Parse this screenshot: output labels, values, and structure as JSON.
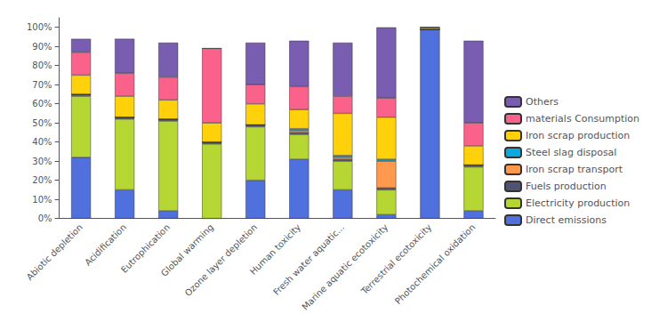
{
  "chart_data": {
    "type": "bar",
    "stacked": true,
    "categories": [
      "Abiotic depletion",
      "Acidification",
      "Eutrophication",
      "Global warming",
      "Ozone layer depletion",
      "Human toxicity",
      "Fresh water aquatic...",
      "Marine aquatic ecotoxicity",
      "Terrestrial ecotoxicity",
      "Photochemical oxidation"
    ],
    "series": [
      {
        "name": "Direct emissions",
        "values": [
          32,
          15,
          4,
          0,
          20,
          31,
          15,
          2,
          99,
          4
        ]
      },
      {
        "name": "Electricity production",
        "values": [
          32,
          37,
          47,
          39,
          28,
          13,
          15,
          13,
          0,
          23
        ]
      },
      {
        "name": "Fuels production",
        "values": [
          1,
          1,
          1,
          1,
          1,
          1,
          1,
          1,
          0,
          1
        ]
      },
      {
        "name": "Iron scrap transport",
        "values": [
          0,
          0,
          0,
          0,
          0,
          1,
          1,
          14,
          0,
          0
        ]
      },
      {
        "name": "Steel slag disposal",
        "values": [
          0,
          0,
          0,
          0,
          0,
          1,
          1,
          1,
          0,
          0
        ]
      },
      {
        "name": "Iron scrap production",
        "values": [
          10,
          11,
          10,
          10,
          11,
          10,
          22,
          22,
          1,
          10
        ]
      },
      {
        "name": "materials Consumption",
        "values": [
          12,
          12,
          12,
          39,
          10,
          12,
          9,
          10,
          0,
          12
        ]
      },
      {
        "name": "Others",
        "values": [
          7,
          18,
          18,
          0,
          22,
          24,
          28,
          37,
          0,
          43
        ]
      }
    ],
    "ylim": [
      0,
      105
    ],
    "yticks": [
      {
        "value": 0,
        "label": "0%"
      },
      {
        "value": 10,
        "label": "10%"
      },
      {
        "value": 20,
        "label": "20%"
      },
      {
        "value": 30,
        "label": "30%"
      },
      {
        "value": 40,
        "label": "40%"
      },
      {
        "value": 50,
        "label": "50%"
      },
      {
        "value": 60,
        "label": "60%"
      },
      {
        "value": 70,
        "label": "70%"
      },
      {
        "value": 80,
        "label": "80%"
      },
      {
        "value": 90,
        "label": "90%"
      },
      {
        "value": 100,
        "label": "100%"
      }
    ],
    "grid": false,
    "legend": "right"
  }
}
